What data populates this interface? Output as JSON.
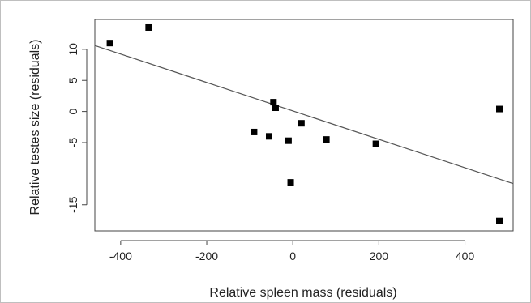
{
  "chart_data": {
    "type": "scatter",
    "title": "",
    "xlabel": "Relative spleen mass (residuals)",
    "ylabel": "Relative testes size (residuals)",
    "xlim": [
      -460,
      512
    ],
    "ylim": [
      -19.2,
      14.8
    ],
    "xticks": [
      -400,
      -200,
      0,
      200,
      400
    ],
    "xtick_labels": [
      "-400",
      "-200",
      "0",
      "200",
      "400"
    ],
    "yticks": [
      10,
      5,
      0,
      -5,
      -15
    ],
    "ytick_labels": [
      "10",
      "5",
      "0",
      "-5",
      "-15"
    ],
    "grid": false,
    "legend": "none",
    "points": [
      {
        "x": -425,
        "y": 11.0
      },
      {
        "x": -335,
        "y": 13.5
      },
      {
        "x": -90,
        "y": -3.3
      },
      {
        "x": -55,
        "y": -4.0
      },
      {
        "x": -45,
        "y": 1.5
      },
      {
        "x": -40,
        "y": 0.6
      },
      {
        "x": -10,
        "y": -4.7
      },
      {
        "x": -5,
        "y": -11.4
      },
      {
        "x": 20,
        "y": -1.9
      },
      {
        "x": 78,
        "y": -4.5
      },
      {
        "x": 193,
        "y": -5.2
      },
      {
        "x": 480,
        "y": 0.4
      },
      {
        "x": 480,
        "y": -17.6
      }
    ],
    "fit_line": {
      "x": [
        -460,
        512
      ],
      "y": [
        10.6,
        -11.6
      ]
    },
    "colors": {
      "marker": "#000000",
      "fit_line": "#555555",
      "axis": "#444444",
      "frame": "#bfbfbf"
    }
  }
}
